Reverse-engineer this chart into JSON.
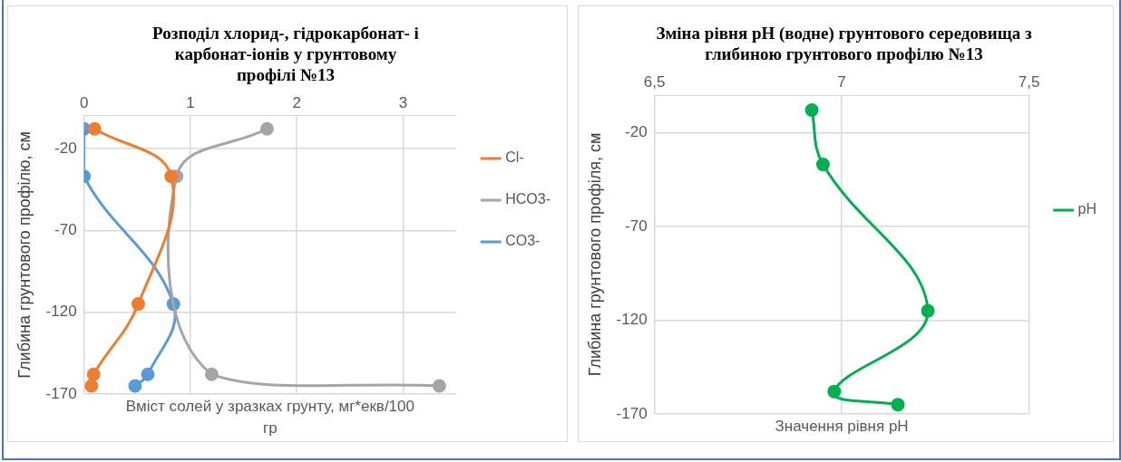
{
  "chart_data": [
    {
      "type": "line",
      "title": "Розподіл хлорид-, гідрокарбонат- і карбонат-іонів у грунтовому профілі №13",
      "xlabel": "Вміст солей у зразках грунту, мг*екв/100 гр",
      "ylabel": "Глибина грунтового профілю, см",
      "series": [
        {
          "name": "Cl-",
          "color": "#ed7d31",
          "x": [
            0.1,
            0.82,
            0.51,
            0.09,
            0.07
          ],
          "values": [
            -8,
            -37,
            -115,
            -158,
            -165
          ]
        },
        {
          "name": "HCO3-",
          "color": "#a5a5a5",
          "x": [
            1.72,
            0.87,
            1.2,
            3.34
          ],
          "values": [
            -8,
            -37,
            -158,
            -165
          ]
        },
        {
          "name": "CO3-",
          "color": "#5b9bd5",
          "x": [
            0,
            0,
            0.84,
            0.6,
            0.48
          ],
          "values": [
            -8,
            -37,
            -115,
            -158,
            -165
          ]
        }
      ],
      "xlim": [
        0,
        3.5
      ],
      "xticks": [
        0,
        1,
        2,
        3
      ],
      "ylim": [
        -170,
        0
      ],
      "yticks": [
        -170,
        -120,
        -70,
        -20
      ],
      "grid": true,
      "legend": "right",
      "marker": "circle"
    },
    {
      "type": "line",
      "title": "Зміна рівня pH (водне) грунтового середовища з глибиною грунтового профілю №13",
      "xlabel": "Значення рівня pH",
      "ylabel": "Глибина грунтового профіля, см",
      "series": [
        {
          "name": "pH",
          "color": "#00b050",
          "x": [
            6.92,
            6.95,
            7.23,
            6.98,
            7.15
          ],
          "values": [
            -8,
            -37,
            -115,
            -158,
            -165
          ]
        }
      ],
      "xlim": [
        6.5,
        7.5
      ],
      "xticks": [
        {
          "value": 6.5,
          "label": "6,5"
        },
        7,
        {
          "value": 7.5,
          "label": "7,5"
        }
      ],
      "ylim": [
        -170,
        0
      ],
      "yticks": [
        -170,
        -120,
        -70,
        -20
      ],
      "grid": true,
      "legend": "right",
      "marker": "circle"
    }
  ]
}
